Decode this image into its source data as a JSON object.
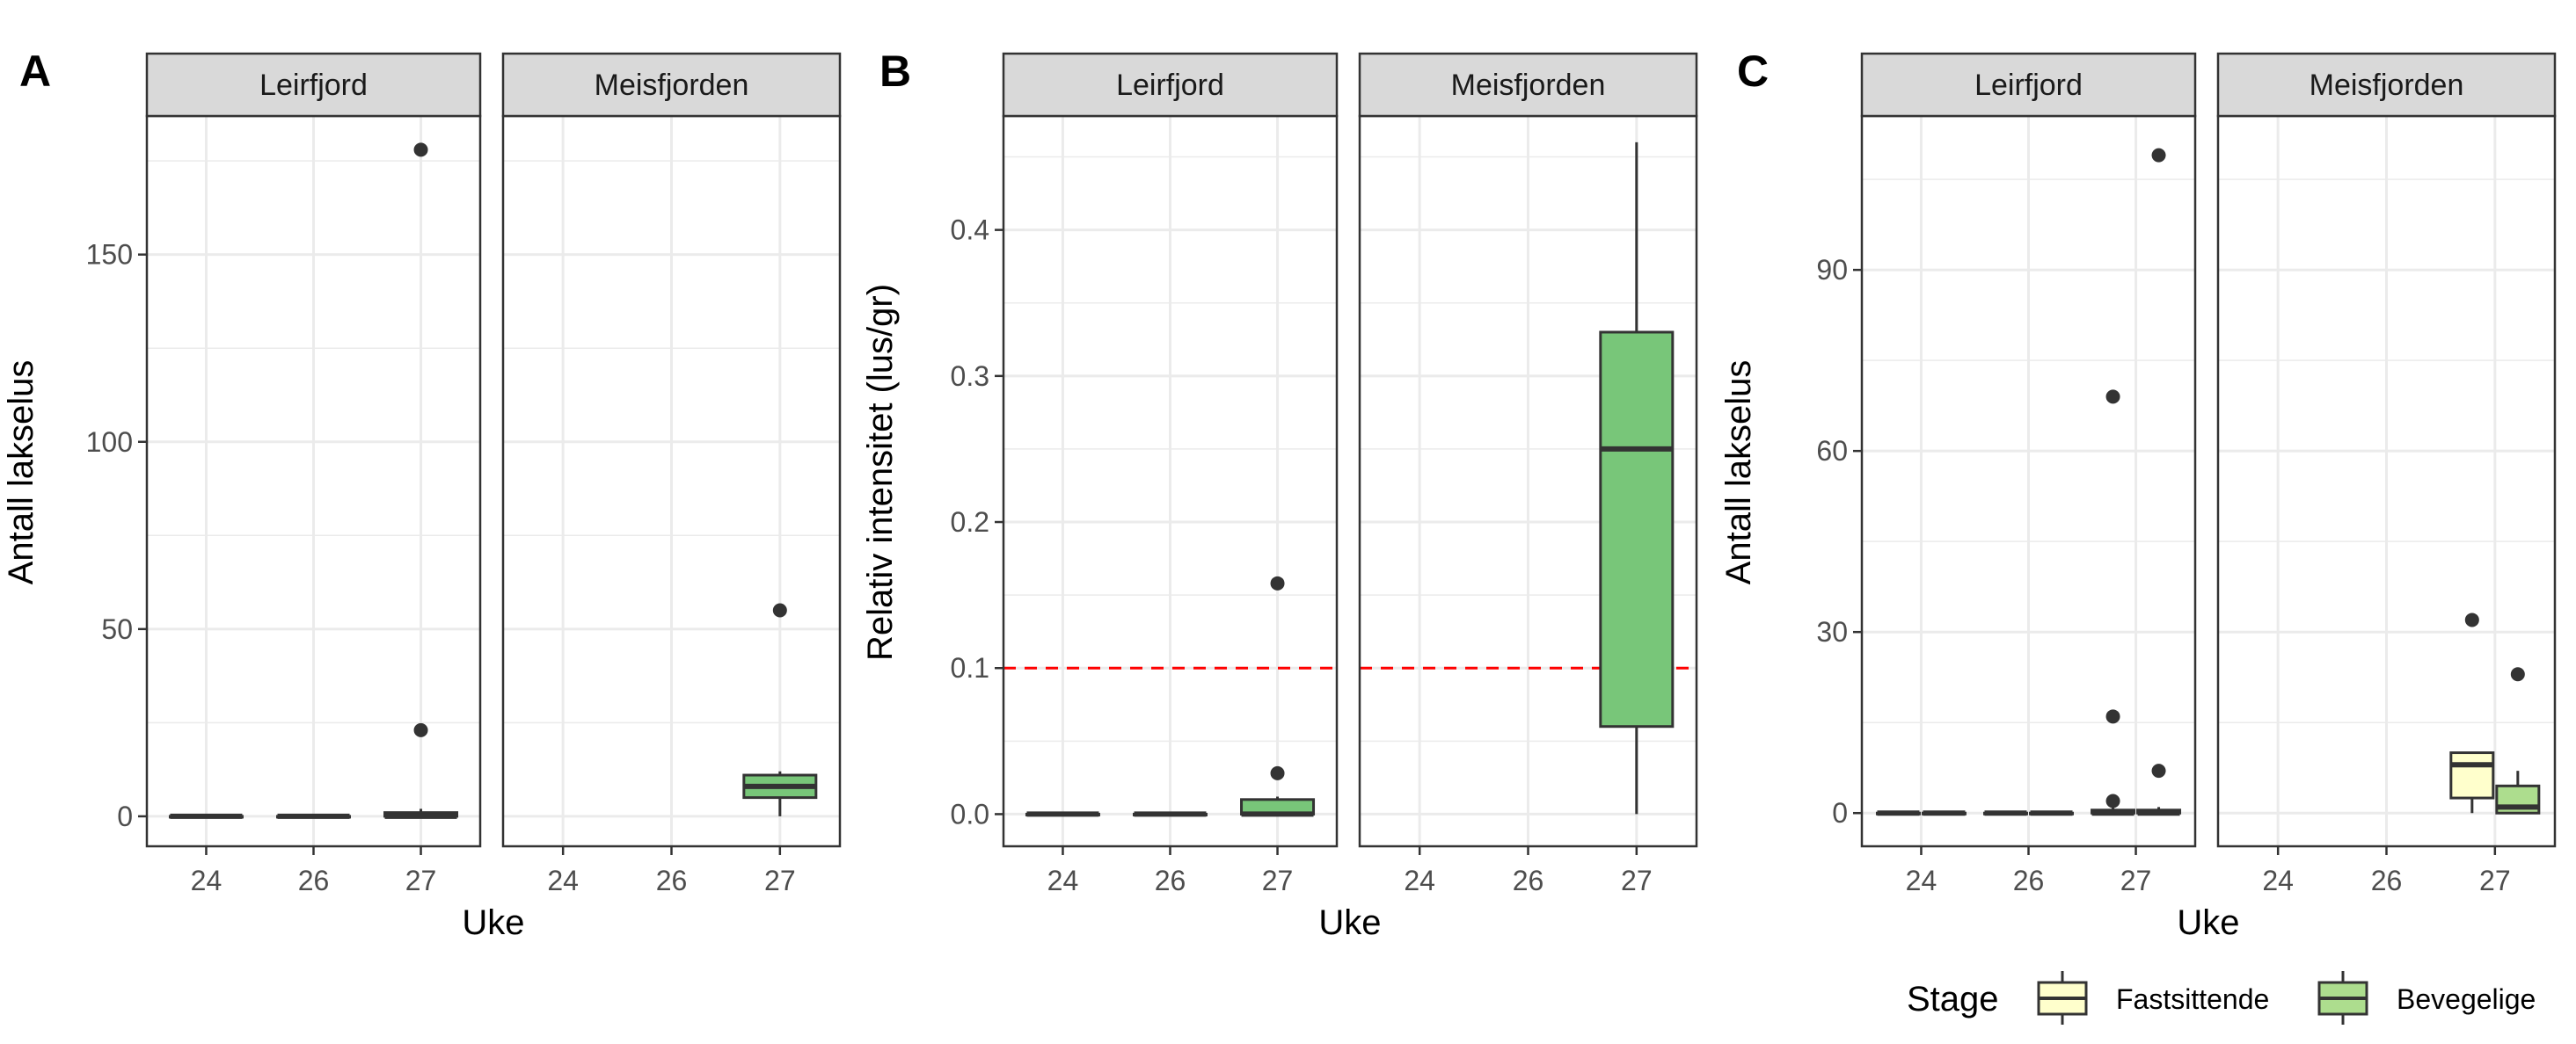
{
  "colors": {
    "box_fill": "#78c679",
    "box_fill_fast": "#ffffcc",
    "box_fill_bev": "#addd8e",
    "strip_bg": "#d9d9d9",
    "grid": "#ebebeb",
    "ref_line": "#ff0000",
    "outlier": "#333333"
  },
  "chart_data": [
    {
      "panel_label": "A",
      "type": "boxplot",
      "xlabel": "Uke",
      "ylabel": "Antall lakselus",
      "categories": [
        "24",
        "26",
        "27"
      ],
      "yticks": [
        "0",
        "50",
        "100",
        "150"
      ],
      "ylim": [
        -8,
        187
      ],
      "facets": [
        {
          "title": "Leirfjord",
          "boxes": [
            {
              "x": "24",
              "q1": 0,
              "median": 0,
              "q3": 0,
              "lower": 0,
              "upper": 0,
              "outliers": []
            },
            {
              "x": "26",
              "q1": 0,
              "median": 0,
              "q3": 0,
              "lower": 0,
              "upper": 0,
              "outliers": []
            },
            {
              "x": "27",
              "q1": 0,
              "median": 0,
              "q3": 1,
              "lower": 0,
              "upper": 2,
              "outliers": [
                23,
                178
              ]
            }
          ]
        },
        {
          "title": "Meisfjorden",
          "boxes": [
            {
              "x": "27",
              "q1": 5,
              "median": 8,
              "q3": 11,
              "lower": 0,
              "upper": 12,
              "outliers": [
                55
              ]
            }
          ]
        }
      ]
    },
    {
      "panel_label": "B",
      "type": "boxplot",
      "xlabel": "Uke",
      "ylabel": "Relativ intensitet (lus/gr)",
      "categories": [
        "24",
        "26",
        "27"
      ],
      "yticks": [
        "0.0",
        "0.1",
        "0.2",
        "0.3",
        "0.4"
      ],
      "ylim": [
        -0.022,
        0.478
      ],
      "reference_line": 0.1,
      "facets": [
        {
          "title": "Leirfjord",
          "boxes": [
            {
              "x": "24",
              "q1": 0,
              "median": 0,
              "q3": 0,
              "lower": 0,
              "upper": 0,
              "outliers": []
            },
            {
              "x": "26",
              "q1": 0,
              "median": 0,
              "q3": 0,
              "lower": 0,
              "upper": 0,
              "outliers": []
            },
            {
              "x": "27",
              "q1": 0,
              "median": 0,
              "q3": 0.01,
              "lower": 0,
              "upper": 0.012,
              "outliers": [
                0.028,
                0.158
              ]
            }
          ]
        },
        {
          "title": "Meisfjorden",
          "boxes": [
            {
              "x": "27",
              "q1": 0.06,
              "median": 0.25,
              "q3": 0.33,
              "lower": 0,
              "upper": 0.46,
              "outliers": []
            }
          ]
        }
      ]
    },
    {
      "panel_label": "C",
      "type": "boxplot",
      "xlabel": "Uke",
      "ylabel": "Antall lakselus",
      "categories": [
        "24",
        "26",
        "27"
      ],
      "yticks": [
        "0",
        "30",
        "60",
        "90"
      ],
      "ylim": [
        -5.5,
        115.5
      ],
      "legend": {
        "title": "Stage",
        "items": [
          "Fastsittende",
          "Bevegelige"
        ]
      },
      "facets": [
        {
          "title": "Leirfjord",
          "boxes": [
            {
              "x": "24",
              "stage": "Fastsittende",
              "q1": 0,
              "median": 0,
              "q3": 0,
              "lower": 0,
              "upper": 0,
              "outliers": []
            },
            {
              "x": "24",
              "stage": "Bevegelige",
              "q1": 0,
              "median": 0,
              "q3": 0,
              "lower": 0,
              "upper": 0,
              "outliers": []
            },
            {
              "x": "26",
              "stage": "Fastsittende",
              "q1": 0,
              "median": 0,
              "q3": 0,
              "lower": 0,
              "upper": 0,
              "outliers": []
            },
            {
              "x": "26",
              "stage": "Bevegelige",
              "q1": 0,
              "median": 0,
              "q3": 0,
              "lower": 0,
              "upper": 0,
              "outliers": []
            },
            {
              "x": "27",
              "stage": "Fastsittende",
              "q1": 0,
              "median": 0,
              "q3": 0.5,
              "lower": 0,
              "upper": 1,
              "outliers": [
                2,
                16,
                69
              ]
            },
            {
              "x": "27",
              "stage": "Bevegelige",
              "q1": 0,
              "median": 0,
              "q3": 0.5,
              "lower": 0,
              "upper": 1,
              "outliers": [
                7,
                109
              ]
            }
          ]
        },
        {
          "title": "Meisfjorden",
          "boxes": [
            {
              "x": "27",
              "stage": "Fastsittende",
              "q1": 2.5,
              "median": 8,
              "q3": 10,
              "lower": 0,
              "upper": 10,
              "outliers": [
                32
              ]
            },
            {
              "x": "27",
              "stage": "Bevegelige",
              "q1": 0,
              "median": 1,
              "q3": 4.5,
              "lower": 0,
              "upper": 7,
              "outliers": [
                23
              ]
            }
          ]
        }
      ]
    }
  ]
}
